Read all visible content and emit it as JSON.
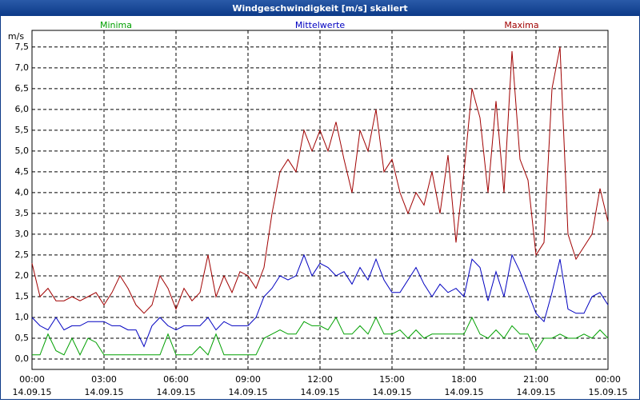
{
  "chart_data": {
    "type": "line",
    "title": "Windgeschwindigkeit [m/s] skaliert",
    "y_label": "m/s",
    "x": [
      0,
      20,
      40,
      60,
      80,
      100,
      120,
      140,
      160,
      180,
      200,
      220,
      240,
      260,
      280,
      300,
      320,
      340,
      360,
      380,
      400,
      420,
      440,
      460,
      480,
      500,
      520,
      540,
      560,
      580,
      600,
      620,
      640,
      660,
      680,
      700,
      720,
      740,
      760,
      780,
      800,
      820,
      840,
      860,
      880,
      900,
      920,
      940,
      960,
      980,
      1000,
      1020,
      1040,
      1060,
      1080,
      1100,
      1120,
      1140,
      1160,
      1180,
      1200,
      1220,
      1240,
      1260,
      1280,
      1300,
      1320,
      1340,
      1360,
      1380,
      1400,
      1420,
      1440
    ],
    "series": [
      {
        "name": "Minima",
        "color": "#00a000",
        "values": [
          0.1,
          0.1,
          0.6,
          0.2,
          0.1,
          0.5,
          0.1,
          0.5,
          0.4,
          0.1,
          0.1,
          0.1,
          0.1,
          0.1,
          0.1,
          0.1,
          0.1,
          0.6,
          0.1,
          0.1,
          0.1,
          0.3,
          0.1,
          0.6,
          0.1,
          0.1,
          0.1,
          0.1,
          0.1,
          0.5,
          0.6,
          0.7,
          0.6,
          0.6,
          0.9,
          0.8,
          0.8,
          0.7,
          1.0,
          0.6,
          0.6,
          0.8,
          0.6,
          1.0,
          0.6,
          0.6,
          0.7,
          0.5,
          0.7,
          0.5,
          0.6,
          0.6,
          0.6,
          0.6,
          0.6,
          1.0,
          0.6,
          0.5,
          0.7,
          0.5,
          0.8,
          0.6,
          0.6,
          0.2,
          0.5,
          0.5,
          0.6,
          0.5,
          0.5,
          0.6,
          0.5,
          0.7,
          0.5
        ]
      },
      {
        "name": "Mittelwerte",
        "color": "#0000c0",
        "values": [
          1.0,
          0.8,
          0.7,
          1.0,
          0.7,
          0.8,
          0.8,
          0.9,
          0.9,
          0.9,
          0.8,
          0.8,
          0.7,
          0.7,
          0.3,
          0.8,
          1.0,
          0.8,
          0.7,
          0.8,
          0.8,
          0.8,
          1.0,
          0.7,
          0.9,
          0.8,
          0.8,
          0.8,
          1.0,
          1.5,
          1.7,
          2.0,
          1.9,
          2.0,
          2.5,
          2.0,
          2.3,
          2.2,
          2.0,
          2.1,
          1.8,
          2.2,
          1.9,
          2.4,
          1.9,
          1.6,
          1.6,
          1.9,
          2.2,
          1.8,
          1.5,
          1.8,
          1.6,
          1.7,
          1.5,
          2.4,
          2.2,
          1.4,
          2.1,
          1.5,
          2.5,
          2.1,
          1.6,
          1.1,
          0.9,
          1.6,
          2.4,
          1.2,
          1.1,
          1.1,
          1.5,
          1.6,
          1.3
        ]
      },
      {
        "name": "Maxima",
        "color": "#a00000",
        "values": [
          2.3,
          1.5,
          1.7,
          1.4,
          1.4,
          1.5,
          1.4,
          1.5,
          1.6,
          1.3,
          1.6,
          2.0,
          1.7,
          1.3,
          1.1,
          1.3,
          2.0,
          1.7,
          1.2,
          1.7,
          1.4,
          1.6,
          2.5,
          1.5,
          2.0,
          1.6,
          2.1,
          2.0,
          1.7,
          2.2,
          3.5,
          4.5,
          4.8,
          4.5,
          5.5,
          5.0,
          5.5,
          5.0,
          5.7,
          4.8,
          4.0,
          5.5,
          5.0,
          6.0,
          4.5,
          4.8,
          4.0,
          3.5,
          4.0,
          3.7,
          4.5,
          3.5,
          4.9,
          2.8,
          4.5,
          6.5,
          5.8,
          4.0,
          6.2,
          4.0,
          7.4,
          4.8,
          4.3,
          2.5,
          2.8,
          6.5,
          7.5,
          3.0,
          2.4,
          2.7,
          3.0,
          4.1,
          3.3
        ]
      }
    ],
    "xlim": [
      0,
      1440
    ],
    "xticks": [
      {
        "value": 0,
        "label": "00:00\n14.09.15"
      },
      {
        "value": 180,
        "label": "03:00\n14.09.15"
      },
      {
        "value": 360,
        "label": "06:00\n14.09.15"
      },
      {
        "value": 540,
        "label": "09:00\n14.09.15"
      },
      {
        "value": 720,
        "label": "12:00\n14.09.15"
      },
      {
        "value": 900,
        "label": "15:00\n14.09.15"
      },
      {
        "value": 1080,
        "label": "18:00\n14.09.15"
      },
      {
        "value": 1260,
        "label": "21:00\n14.09.15"
      },
      {
        "value": 1440,
        "label": "00:00\n15.09.15"
      }
    ],
    "ylim": [
      -0.25,
      7.9
    ],
    "yticks": [
      {
        "value": 0,
        "label": "0,0"
      },
      {
        "value": 0.5,
        "label": "0,5"
      },
      {
        "value": 1,
        "label": "1,0"
      },
      {
        "value": 1.5,
        "label": "1,5"
      },
      {
        "value": 2,
        "label": "2,0"
      },
      {
        "value": 2.5,
        "label": "2,5"
      },
      {
        "value": 3,
        "label": "3,0"
      },
      {
        "value": 3.5,
        "label": "3,5"
      },
      {
        "value": 4,
        "label": "4,0"
      },
      {
        "value": 4.5,
        "label": "4,5"
      },
      {
        "value": 5,
        "label": "5,0"
      },
      {
        "value": 5.5,
        "label": "5,5"
      },
      {
        "value": 6,
        "label": "6,0"
      },
      {
        "value": 6.5,
        "label": "6,5"
      },
      {
        "value": 7,
        "label": "7,0"
      },
      {
        "value": 7.5,
        "label": "7,5"
      }
    ],
    "grid": true,
    "legend": "top"
  }
}
